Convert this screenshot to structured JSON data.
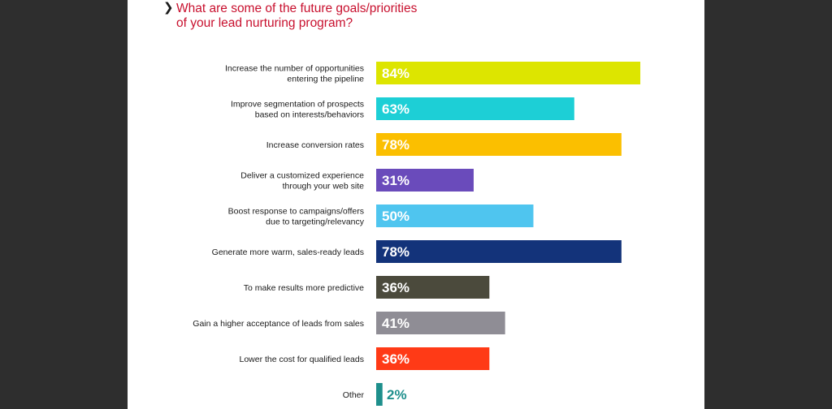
{
  "chart_data": {
    "type": "bar",
    "orientation": "horizontal",
    "title": "What are some of the future goals/priorities of your lead nurturing program?",
    "title_lines": [
      "What are some of the future goals/priorities",
      "of your lead nurturing program?"
    ],
    "categories": [
      [
        "Increase the number of opportunities",
        "entering the pipeline"
      ],
      [
        "Improve segmentation of prospects",
        "based on interests/behaviors"
      ],
      [
        "Increase conversion rates"
      ],
      [
        "Deliver a customized experience",
        "through your web site"
      ],
      [
        "Boost response to campaigns/offers",
        "due to targeting/relevancy"
      ],
      [
        "Generate more warm, sales-ready leads"
      ],
      [
        "To make results more predictive"
      ],
      [
        "Gain a higher acceptance of leads from sales"
      ],
      [
        "Lower the cost for qualified leads"
      ],
      [
        "Other"
      ]
    ],
    "values": [
      84,
      63,
      78,
      31,
      50,
      78,
      36,
      41,
      36,
      2
    ],
    "value_labels": [
      "84%",
      "63%",
      "78%",
      "31%",
      "50%",
      "78%",
      "36%",
      "41%",
      "36%",
      "2%"
    ],
    "colors": [
      "#dde500",
      "#1dcfd6",
      "#fbbf00",
      "#6a4bbb",
      "#4fc5ef",
      "#13337a",
      "#4b4a3c",
      "#8f8d95",
      "#ff3a16",
      "#1e8f8c"
    ],
    "value_label_colors": [
      "#ffffff",
      "#ffffff",
      "#ffffff",
      "#ffffff",
      "#ffffff",
      "#ffffff",
      "#ffffff",
      "#ffffff",
      "#ffffff",
      "#1e8f8c"
    ],
    "xlim": [
      0,
      100
    ],
    "grid": false,
    "legend": "none"
  }
}
